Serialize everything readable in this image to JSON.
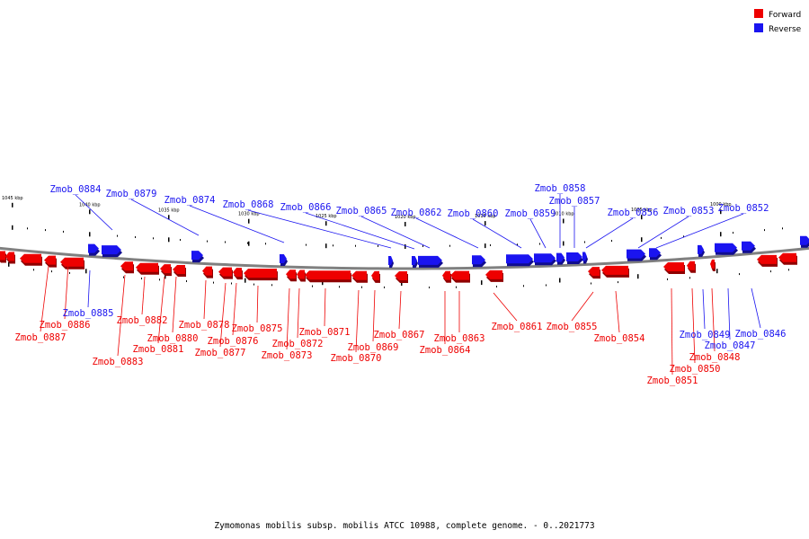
{
  "colors": {
    "forward": "#ee0000",
    "reverse": "#1a14f0",
    "backbone": "#808080",
    "background": "#ffffff"
  },
  "legend": {
    "forward": "Forward",
    "reverse": "Reverse"
  },
  "caption": "Zymomonas mobilis subsp. mobilis ATCC 10988, complete genome. - 0..2021773",
  "scale_ticks": [
    "1045 kbp",
    "1040 kbp",
    "1035 kbp",
    "1030 kbp",
    "1025 kbp",
    "1020 kbp",
    "1015 kbp",
    "1010 kbp",
    "1005 kbp",
    "1000 kbp"
  ],
  "genes_top": [
    "Zmob_0884",
    "Zmob_0879",
    "Zmob_0874",
    "Zmob_0868",
    "Zmob_0866",
    "Zmob_0865",
    "Zmob_0862",
    "Zmob_0860",
    "Zmob_0859",
    "Zmob_0858",
    "Zmob_0857",
    "Zmob_0856",
    "Zmob_0853",
    "Zmob_0852"
  ],
  "genes_bottom": [
    {
      "name": "Zmob_0885",
      "strand": "reverse"
    },
    {
      "name": "Zmob_0886",
      "strand": "forward"
    },
    {
      "name": "Zmob_0887",
      "strand": "forward"
    },
    {
      "name": "Zmob_0882",
      "strand": "forward"
    },
    {
      "name": "Zmob_0883",
      "strand": "forward"
    },
    {
      "name": "Zmob_0880",
      "strand": "forward"
    },
    {
      "name": "Zmob_0881",
      "strand": "forward"
    },
    {
      "name": "Zmob_0878",
      "strand": "forward"
    },
    {
      "name": "Zmob_0876",
      "strand": "forward"
    },
    {
      "name": "Zmob_0877",
      "strand": "forward"
    },
    {
      "name": "Zmob_0875",
      "strand": "forward"
    },
    {
      "name": "Zmob_0872",
      "strand": "forward"
    },
    {
      "name": "Zmob_0873",
      "strand": "forward"
    },
    {
      "name": "Zmob_0871",
      "strand": "forward"
    },
    {
      "name": "Zmob_0869",
      "strand": "forward"
    },
    {
      "name": "Zmob_0870",
      "strand": "forward"
    },
    {
      "name": "Zmob_0867",
      "strand": "forward"
    },
    {
      "name": "Zmob_0863",
      "strand": "forward"
    },
    {
      "name": "Zmob_0864",
      "strand": "forward"
    },
    {
      "name": "Zmob_0861",
      "strand": "forward"
    },
    {
      "name": "Zmob_0855",
      "strand": "forward"
    },
    {
      "name": "Zmob_0854",
      "strand": "forward"
    },
    {
      "name": "Zmob_0849",
      "strand": "reverse"
    },
    {
      "name": "Zmob_0846",
      "strand": "reverse"
    },
    {
      "name": "Zmob_0847",
      "strand": "reverse"
    },
    {
      "name": "Zmob_0848",
      "strand": "forward"
    },
    {
      "name": "Zmob_0850",
      "strand": "forward"
    },
    {
      "name": "Zmob_0851",
      "strand": "forward"
    }
  ]
}
